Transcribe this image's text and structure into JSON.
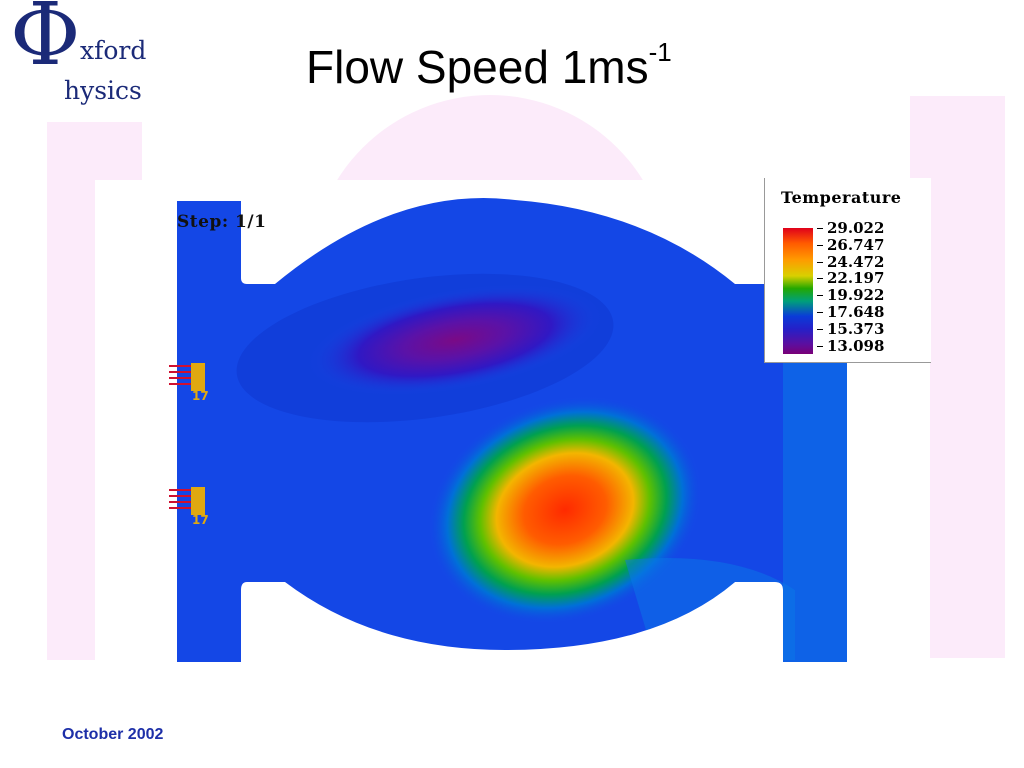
{
  "slide": {
    "title_main": "Flow Speed 1ms",
    "title_sup": "-1",
    "footer_date": "October 2002"
  },
  "logo": {
    "glyph": "Φ",
    "line1": "xford",
    "line2": "hysics"
  },
  "figure": {
    "step_label": "Step: 1/1",
    "inlet_markers": [
      "17",
      "17"
    ]
  },
  "legend": {
    "title": "Temperature",
    "ticks": [
      "29.022",
      "26.747",
      "24.472",
      "22.197",
      "19.922",
      "17.648",
      "15.373",
      "13.098"
    ]
  },
  "colors": {
    "logo": "#1b2a78",
    "footer": "#1d2fa8",
    "watermark": "#fcebfa",
    "field_base": "#1447e6"
  }
}
